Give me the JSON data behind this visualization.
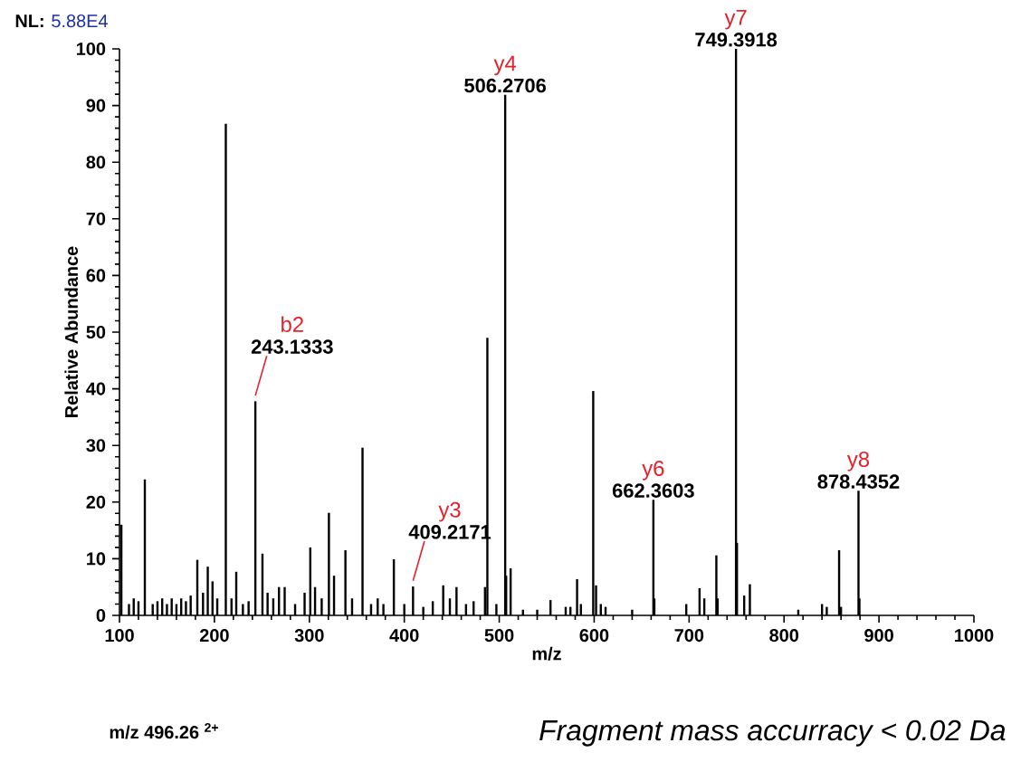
{
  "chart_data": {
    "type": "bar",
    "xlabel": "m/z",
    "ylabel": "Relative Abundance",
    "color": "#000000",
    "x": [
      102,
      110,
      115,
      120,
      126.7,
      135,
      140,
      145,
      150,
      155,
      160,
      165,
      170,
      175,
      182,
      188,
      193,
      198,
      203,
      212,
      218,
      223,
      230,
      236,
      243.1333,
      250.6,
      256,
      262,
      268,
      274,
      285,
      295,
      301,
      306,
      313,
      320.6,
      326,
      338,
      345,
      356,
      365,
      372,
      378,
      389,
      400,
      409.2171,
      420,
      430,
      441,
      448,
      455,
      465,
      473,
      485,
      487.5,
      497,
      506.2706,
      507.3,
      512,
      525,
      540,
      554,
      570,
      575,
      582,
      586,
      599,
      602,
      607,
      612,
      640,
      662.3603,
      663.4,
      697,
      711,
      716,
      728.7,
      730,
      749.3918,
      750.4,
      758,
      764,
      815,
      840,
      845,
      858,
      860,
      878.4352,
      879.4
    ],
    "values": [
      16,
      2,
      3,
      2.5,
      24,
      2,
      2.5,
      3,
      2,
      3,
      2,
      3,
      2.5,
      3.5,
      9.8,
      4,
      8.6,
      6,
      3,
      86.8,
      3,
      7.7,
      2,
      2.5,
      37.8,
      10.9,
      4,
      3,
      5,
      5,
      2,
      4,
      12,
      5,
      3,
      18.1,
      7,
      11.5,
      3,
      29.6,
      2,
      3,
      2,
      9.9,
      2,
      5.1,
      1.5,
      2.5,
      5.3,
      3,
      5,
      2,
      2.5,
      5,
      49,
      2,
      91.9,
      7,
      8.3,
      1,
      1,
      2.7,
      1.5,
      1.5,
      6.4,
      2,
      39.6,
      5.3,
      2,
      1.5,
      1,
      20.4,
      3,
      2,
      4.8,
      3,
      10.6,
      3,
      100,
      12.8,
      3.5,
      5.5,
      1,
      2,
      1.5,
      11.5,
      1.5,
      22,
      3
    ],
    "xlim": [
      100,
      1000
    ],
    "xticks": [
      100,
      200,
      300,
      400,
      500,
      600,
      700,
      800,
      900,
      1000
    ],
    "ylim": [
      0,
      100
    ],
    "yticks": [
      0,
      10,
      20,
      30,
      40,
      50,
      60,
      70,
      80,
      90,
      100
    ],
    "annotations": [
      "NL:",
      "5.88E4",
      "m/z 496.26 $^{2+}$",
      "*Fragment mass accurracy < 0.02 Da*",
      {
        "text": "b2",
        "x": 243.1333,
        "y": 37.8
      },
      {
        "text": "243.1333",
        "x": 243.1333,
        "y": 37.8
      },
      {
        "text": "y3",
        "x": 409.2171,
        "y": 5.1
      },
      {
        "text": "409.2171",
        "x": 409.2171,
        "y": 5.1
      },
      {
        "text": "y4",
        "x": 506.2706,
        "y": 91.9
      },
      {
        "text": "506.2706",
        "x": 506.2706,
        "y": 91.9
      },
      {
        "text": "y6",
        "x": 662.3603,
        "y": 20.4
      },
      {
        "text": "662.3603",
        "x": 662.3603,
        "y": 20.4
      },
      {
        "text": "y7",
        "x": 749.3918,
        "y": 100
      },
      {
        "text": "749.3918",
        "x": 749.3918,
        "y": 100
      },
      {
        "text": "y8",
        "x": 878.4352,
        "y": 22
      },
      {
        "text": "878.4352",
        "x": 878.4352,
        "y": 22
      }
    ]
  }
}
